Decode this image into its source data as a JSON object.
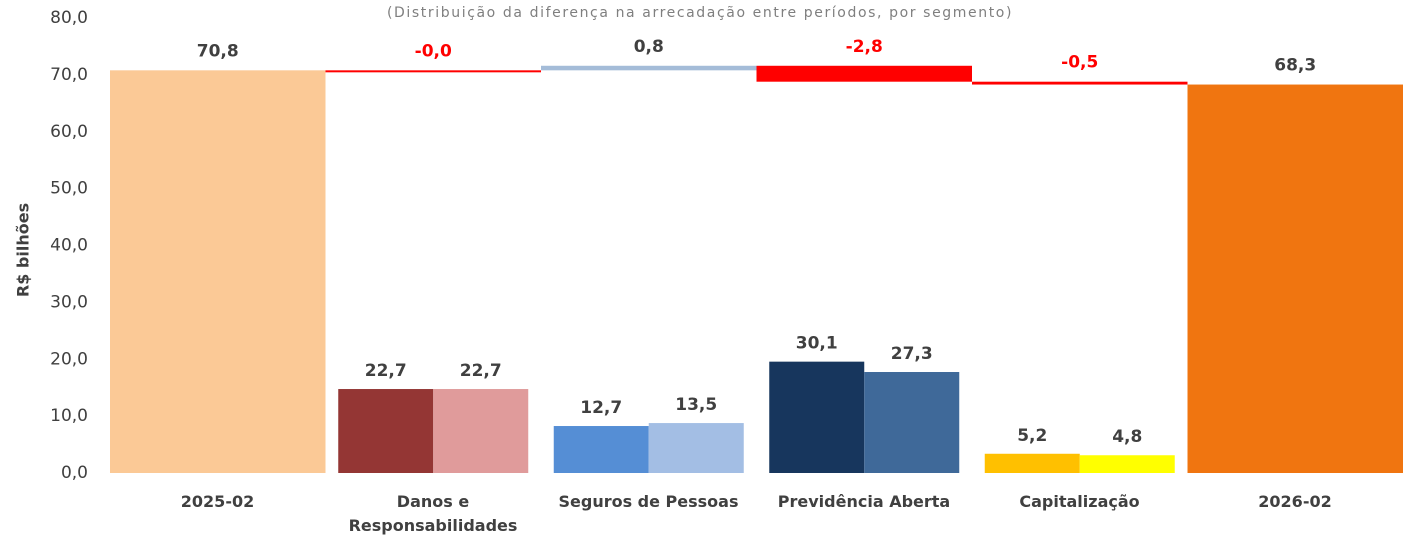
{
  "chart_data": {
    "type": "waterfall",
    "subtitle": "(Distribuição da diferença na arrecadação entre períodos, por segmento)",
    "y_label": "R$ bilhões",
    "categories": [
      "2025-02",
      "Danos e Responsabilidades",
      "Seguros de Pessoas",
      "Previdência Aberta",
      "Capitalização",
      "2026-02"
    ],
    "values": [
      70.8,
      -0.0,
      0.8,
      -2.8,
      -0.5,
      68.3
    ],
    "value_labels": [
      "70,8",
      "-0,0",
      "0,8",
      "-2,8",
      "-0,5",
      "68,3"
    ],
    "is_total": [
      true,
      false,
      false,
      false,
      false,
      true
    ],
    "colors": [
      "#fbc996",
      "#ff0000",
      "#a4bcd8",
      "#ff0000",
      "#ff0000",
      "#f07510"
    ],
    "value_label_colors": [
      "#404040",
      "#ff0000",
      "#404040",
      "#ff0000",
      "#ff0000",
      "#404040"
    ],
    "series": [
      {
        "axis": "y2",
        "values": [
          null,
          22.7,
          12.7,
          30.1,
          5.2,
          null
        ],
        "value_labels": [
          null,
          "22,7",
          "12,7",
          "30,1",
          "5,2",
          null
        ],
        "colors": [
          null,
          "#943634",
          "#558ed5",
          "#17365d",
          "#ffc000",
          null
        ]
      },
      {
        "axis": "y2",
        "values": [
          null,
          22.7,
          13.5,
          27.3,
          4.8,
          null
        ],
        "value_labels": [
          null,
          "22,7",
          "13,5",
          "27,3",
          "4,8",
          null
        ],
        "colors": [
          null,
          "#e09b9b",
          "#a3bee4",
          "#3f6999",
          "#ffff00",
          null
        ]
      }
    ],
    "ylim": [
      0,
      80
    ],
    "yticks": [
      {
        "value": 0,
        "label": "0,0"
      },
      {
        "value": 10,
        "label": "10,0"
      },
      {
        "value": 20,
        "label": "20,0"
      },
      {
        "value": 30,
        "label": "30,0"
      },
      {
        "value": 40,
        "label": "40,0"
      },
      {
        "value": 50,
        "label": "50,0"
      },
      {
        "value": 60,
        "label": "60,0"
      },
      {
        "value": 70,
        "label": "70,0"
      },
      {
        "value": 80,
        "label": "80,0"
      }
    ],
    "y2lim": [
      0,
      123
    ]
  }
}
